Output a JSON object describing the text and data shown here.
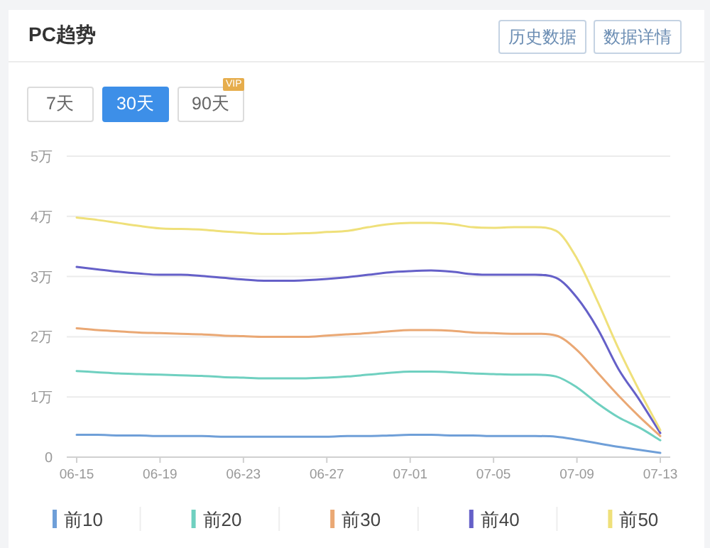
{
  "chart_data": {
    "type": "line",
    "title": "PC趋势",
    "annotations": [
      "历史数据",
      "数据详情",
      "7天",
      "30天",
      "90天",
      "VIP"
    ],
    "categories": [
      "06-15",
      null,
      null,
      null,
      "06-19",
      null,
      null,
      null,
      "06-23",
      null,
      null,
      null,
      "06-27",
      null,
      null,
      null,
      "07-01",
      null,
      null,
      null,
      "07-05",
      null,
      null,
      null,
      "07-09",
      null,
      null,
      null,
      "07-13"
    ],
    "series": [
      {
        "name": "前10",
        "color": "#6f9fd8",
        "values": [
          0.37,
          0.37,
          0.36,
          0.36,
          0.35,
          0.35,
          0.35,
          0.34,
          0.34,
          0.34,
          0.34,
          0.34,
          0.34,
          0.35,
          0.35,
          0.36,
          0.37,
          0.37,
          0.36,
          0.36,
          0.35,
          0.35,
          0.35,
          0.34,
          0.29,
          0.23,
          0.17,
          0.12,
          0.07
        ]
      },
      {
        "name": "前20",
        "color": "#6fd0c0",
        "values": [
          1.43,
          1.41,
          1.39,
          1.38,
          1.37,
          1.36,
          1.35,
          1.33,
          1.32,
          1.31,
          1.31,
          1.31,
          1.32,
          1.34,
          1.37,
          1.4,
          1.42,
          1.42,
          1.41,
          1.39,
          1.38,
          1.37,
          1.37,
          1.34,
          1.16,
          0.89,
          0.66,
          0.49,
          0.28
        ]
      },
      {
        "name": "前30",
        "color": "#eaa874",
        "values": [
          2.14,
          2.11,
          2.09,
          2.07,
          2.06,
          2.05,
          2.04,
          2.02,
          2.01,
          2.0,
          2.0,
          2.0,
          2.02,
          2.04,
          2.06,
          2.09,
          2.11,
          2.11,
          2.1,
          2.07,
          2.06,
          2.05,
          2.05,
          2.02,
          1.78,
          1.4,
          1.02,
          0.67,
          0.35
        ]
      },
      {
        "name": "前40",
        "color": "#6560c8",
        "values": [
          3.16,
          3.12,
          3.08,
          3.05,
          3.03,
          3.03,
          3.01,
          2.98,
          2.95,
          2.93,
          2.93,
          2.94,
          2.96,
          2.99,
          3.03,
          3.07,
          3.09,
          3.1,
          3.08,
          3.04,
          3.03,
          3.03,
          3.03,
          2.98,
          2.65,
          2.13,
          1.46,
          0.95,
          0.4
        ]
      },
      {
        "name": "前50",
        "color": "#efe07a",
        "values": [
          3.98,
          3.94,
          3.89,
          3.84,
          3.8,
          3.79,
          3.78,
          3.75,
          3.73,
          3.71,
          3.71,
          3.72,
          3.74,
          3.76,
          3.82,
          3.87,
          3.89,
          3.89,
          3.87,
          3.82,
          3.81,
          3.82,
          3.82,
          3.76,
          3.3,
          2.58,
          1.8,
          1.1,
          0.45
        ]
      }
    ],
    "ylim": [
      0,
      5
    ],
    "yticks": [
      0,
      {
        "value": 1,
        "label": "1万"
      },
      {
        "value": 2,
        "label": "2万"
      },
      {
        "value": 3,
        "label": "3万"
      },
      {
        "value": 4,
        "label": "4万"
      },
      {
        "value": 5,
        "label": "5万"
      }
    ],
    "grid": "y",
    "legend": "bottom"
  }
}
